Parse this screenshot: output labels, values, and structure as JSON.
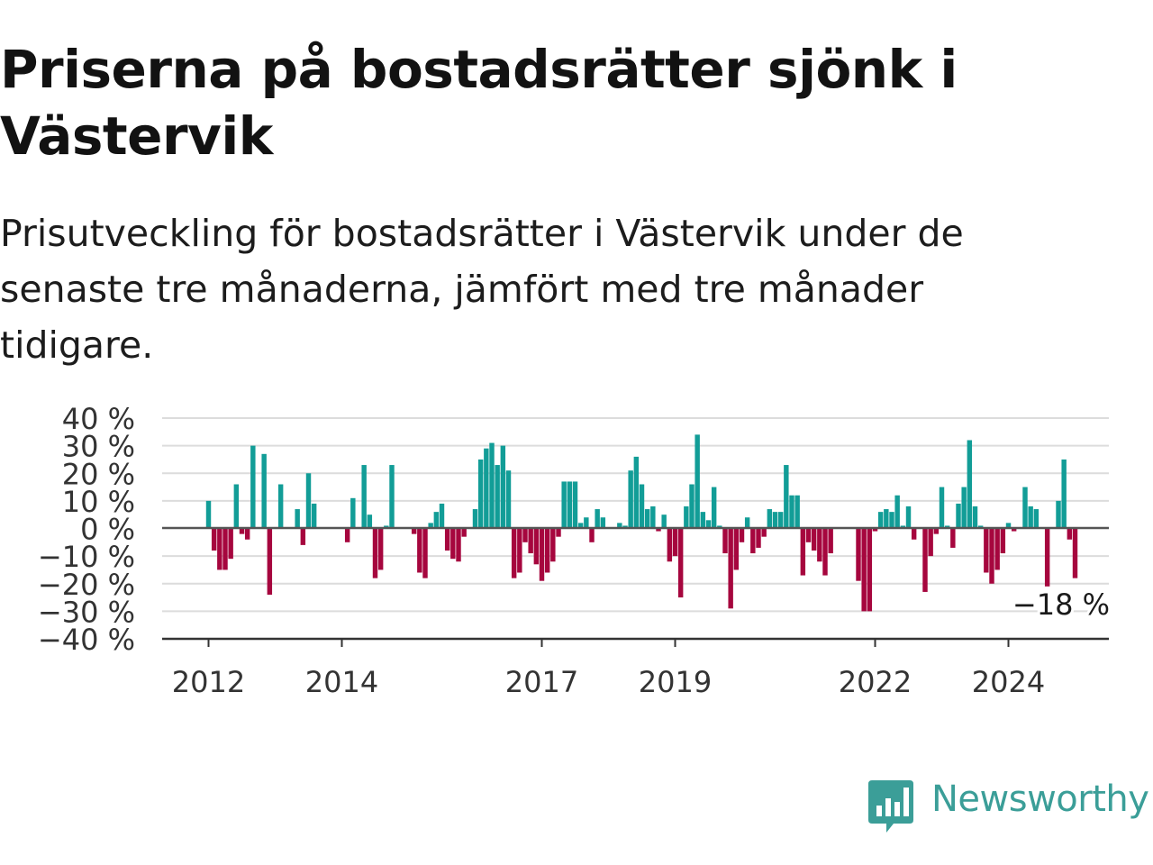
{
  "title": "Priserna på bostadsrätter sjönk i Västervik",
  "subtitle": "Prisutveckling för bostadsrätter i Västervik under de senaste tre månaderna, jämfört med tre månader tidigare.",
  "logo": {
    "text": "Newsworthy",
    "icon": "bar-chart-speech-bubble-icon"
  },
  "colors": {
    "positive": "#129d97",
    "negative": "#a6063e",
    "grid": "#dcdcdc",
    "zero_line": "#555555",
    "brand": "#3b9e98"
  },
  "chart_data": {
    "type": "bar",
    "unit": "%",
    "start": "2012-01",
    "ylim": [
      -40,
      40
    ],
    "y_ticks": [
      40,
      30,
      20,
      10,
      0,
      -10,
      -20,
      -30,
      -40
    ],
    "y_tick_labels": [
      "40 %",
      "30 %",
      "20 %",
      "10 %",
      "0 %",
      "−10 %",
      "−20 %",
      "−30 %",
      "−40 %"
    ],
    "x_tick_labels": [
      {
        "date": "2012-01",
        "label": "2012"
      },
      {
        "date": "2014-01",
        "label": "2014"
      },
      {
        "date": "2017-01",
        "label": "2017"
      },
      {
        "date": "2019-01",
        "label": "2019"
      },
      {
        "date": "2022-01",
        "label": "2022"
      },
      {
        "date": "2024-01",
        "label": "2024"
      }
    ],
    "last_label": "−18 %",
    "grid": true,
    "values": [
      10,
      -8,
      -15,
      -15,
      -11,
      16,
      -2,
      -4,
      30,
      0,
      27,
      -24,
      0,
      16,
      0,
      0,
      7,
      -6,
      20,
      9,
      0,
      0,
      0,
      0,
      0,
      -5,
      11,
      0,
      23,
      5,
      -18,
      -15,
      1,
      23,
      0,
      0,
      0,
      -2,
      -16,
      -18,
      2,
      6,
      9,
      -8,
      -11,
      -12,
      -3,
      0,
      7,
      25,
      29,
      31,
      23,
      30,
      21,
      -18,
      -16,
      -5,
      -9,
      -13,
      -19,
      -16,
      -12,
      -3,
      17,
      17,
      17,
      2,
      4,
      -5,
      7,
      4,
      0,
      0,
      2,
      1,
      21,
      26,
      16,
      7,
      8,
      -1,
      5,
      -12,
      -10,
      -25,
      8,
      16,
      34,
      6,
      3,
      15,
      1,
      -9,
      -29,
      -15,
      -5,
      4,
      -9,
      -7,
      -3,
      7,
      6,
      6,
      23,
      12,
      12,
      -17,
      -5,
      -8,
      -12,
      -17,
      -9,
      0,
      0,
      0,
      0,
      -19,
      -30,
      -30,
      -1,
      6,
      7,
      6,
      12,
      1,
      8,
      -4,
      0,
      -23,
      -10,
      -2,
      15,
      1,
      -7,
      9,
      15,
      32,
      8,
      1,
      -16,
      -20,
      -15,
      -9,
      2,
      -1,
      0,
      15,
      8,
      7,
      0,
      -21,
      0,
      10,
      25,
      -4,
      -18
    ]
  }
}
